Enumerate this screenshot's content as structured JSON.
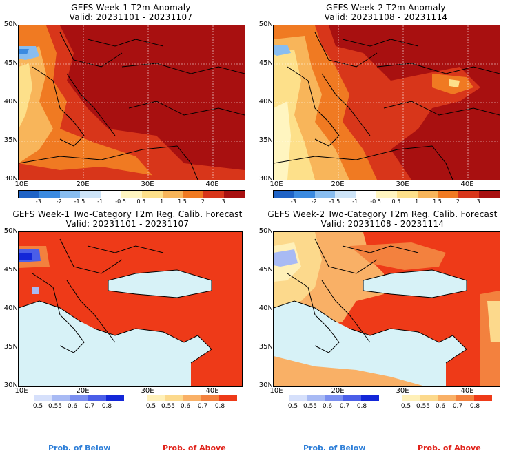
{
  "panels": [
    {
      "title": "GEFS Week-1 T2m Anomaly",
      "valid": "Valid: 20231101 - 20231107",
      "lat_labels": [
        "50N",
        "45N",
        "40N",
        "35N",
        "30N"
      ],
      "lon_labels": [
        "10E",
        "20E",
        "30E",
        "40E"
      ],
      "colorbar_ticks": [
        "-3",
        "-2",
        "-1.5",
        "-1",
        "-0.5",
        "0.5",
        "1",
        "1.5",
        "2",
        "3"
      ]
    },
    {
      "title": "GEFS Week-2 T2m Anomaly",
      "valid": "Valid: 20231108 - 20231114",
      "lat_labels": [
        "50N",
        "45N",
        "40N",
        "35N",
        "30N"
      ],
      "lon_labels": [
        "10E",
        "20E",
        "30E",
        "40E"
      ],
      "colorbar_ticks": [
        "-3",
        "-2",
        "-1.5",
        "-1",
        "-0.5",
        "0.5",
        "1",
        "1.5",
        "2",
        "3"
      ]
    },
    {
      "title": "GEFS Week-1 Two-Category T2m Reg. Calib. Forecast",
      "valid": "Valid: 20231101 - 20231107",
      "lat_labels": [
        "50N",
        "45N",
        "40N",
        "35N",
        "30N"
      ],
      "lon_labels": [
        "10E",
        "20E",
        "30E",
        "40E"
      ],
      "below_ticks": [
        "0.5",
        "0.55",
        "0.6",
        "0.7",
        "0.8"
      ],
      "above_ticks": [
        "0.5",
        "0.55",
        "0.6",
        "0.7",
        "0.8"
      ],
      "below_label": "Prob. of Below",
      "above_label": "Prob. of Above"
    },
    {
      "title": "GEFS Week-2 Two-Category T2m Reg. Calib. Forecast",
      "valid": "Valid: 20231108 - 20231114",
      "lat_labels": [
        "50N",
        "45N",
        "40N",
        "35N",
        "30N"
      ],
      "lon_labels": [
        "10E",
        "20E",
        "30E",
        "40E"
      ],
      "below_ticks": [
        "0.5",
        "0.55",
        "0.6",
        "0.7",
        "0.8"
      ],
      "above_ticks": [
        "0.5",
        "0.55",
        "0.6",
        "0.7",
        "0.8"
      ],
      "below_label": "Prob. of Below",
      "above_label": "Prob. of Above"
    }
  ],
  "colors": {
    "anomaly_scale": [
      "#1f63c6",
      "#3b8ae0",
      "#88bdf0",
      "#cde4f8",
      "#ffffff",
      "#fff5c0",
      "#fde08a",
      "#f8b55a",
      "#f07a22",
      "#d8361a",
      "#a81010"
    ],
    "below_scale": [
      "#d6e0fb",
      "#a8baf4",
      "#7b8ff0",
      "#4a5ee8",
      "#1327d8"
    ],
    "above_scale": [
      "#fff0b8",
      "#fcd98c",
      "#f9b066",
      "#f3813e",
      "#ee3a18"
    ],
    "below_text": "#2f7fd8",
    "above_text": "#e0221a",
    "sea": "#d7f2f7"
  }
}
